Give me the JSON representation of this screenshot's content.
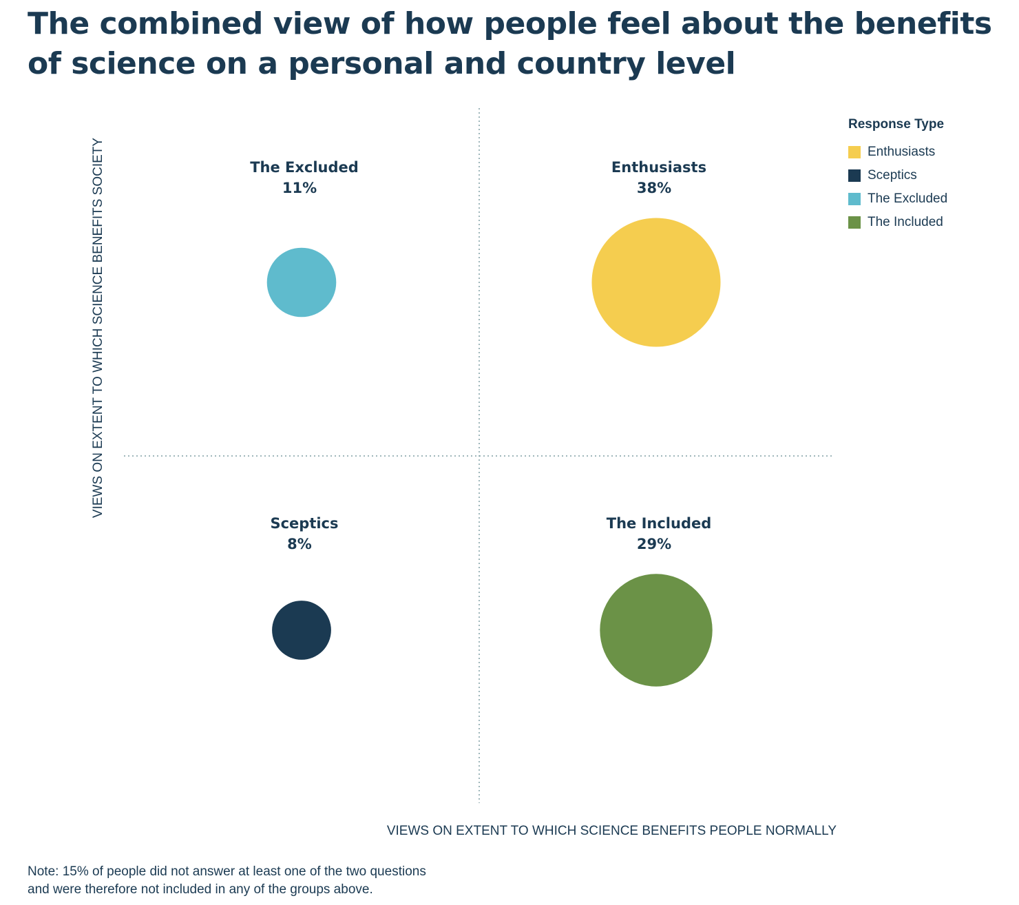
{
  "title_lines": [
    "The combined view of how people feel about the benefits",
    "of science on a personal and country level"
  ],
  "chart_data": {
    "type": "bubble",
    "xlabel": "VIEWS ON EXTENT TO WHICH SCIENCE BENEFITS PEOPLE NORMALLY",
    "ylabel": "VIEWS ON EXTENT TO WHICH SCIENCE BENEFITS SOCIETY",
    "grid": false,
    "quadrant_dividers": true,
    "legend": {
      "title": "Response Type",
      "position": "top-right",
      "items": [
        {
          "label": "Enthusiasts",
          "color": "#f5cd4f"
        },
        {
          "label": "Sceptics",
          "color": "#1b3a52"
        },
        {
          "label": "The Excluded",
          "color": "#5fbbcd"
        },
        {
          "label": "The Included",
          "color": "#6b9247"
        }
      ]
    },
    "groups": [
      {
        "name": "The Excluded",
        "value": 11,
        "value_label": "11%",
        "quadrant": "top-left",
        "color": "#5fbbcd"
      },
      {
        "name": "Enthusiasts",
        "value": 38,
        "value_label": "38%",
        "quadrant": "top-right",
        "color": "#f5cd4f"
      },
      {
        "name": "Sceptics",
        "value": 8,
        "value_label": "8%",
        "quadrant": "bottom-left",
        "color": "#1b3a52"
      },
      {
        "name": "The Included",
        "value": 29,
        "value_label": "29%",
        "quadrant": "bottom-right",
        "color": "#6b9247"
      }
    ]
  },
  "note_lines": [
    "Note: 15% of people did not answer at least one of the two questions",
    "and were therefore not included in any of the groups above."
  ]
}
